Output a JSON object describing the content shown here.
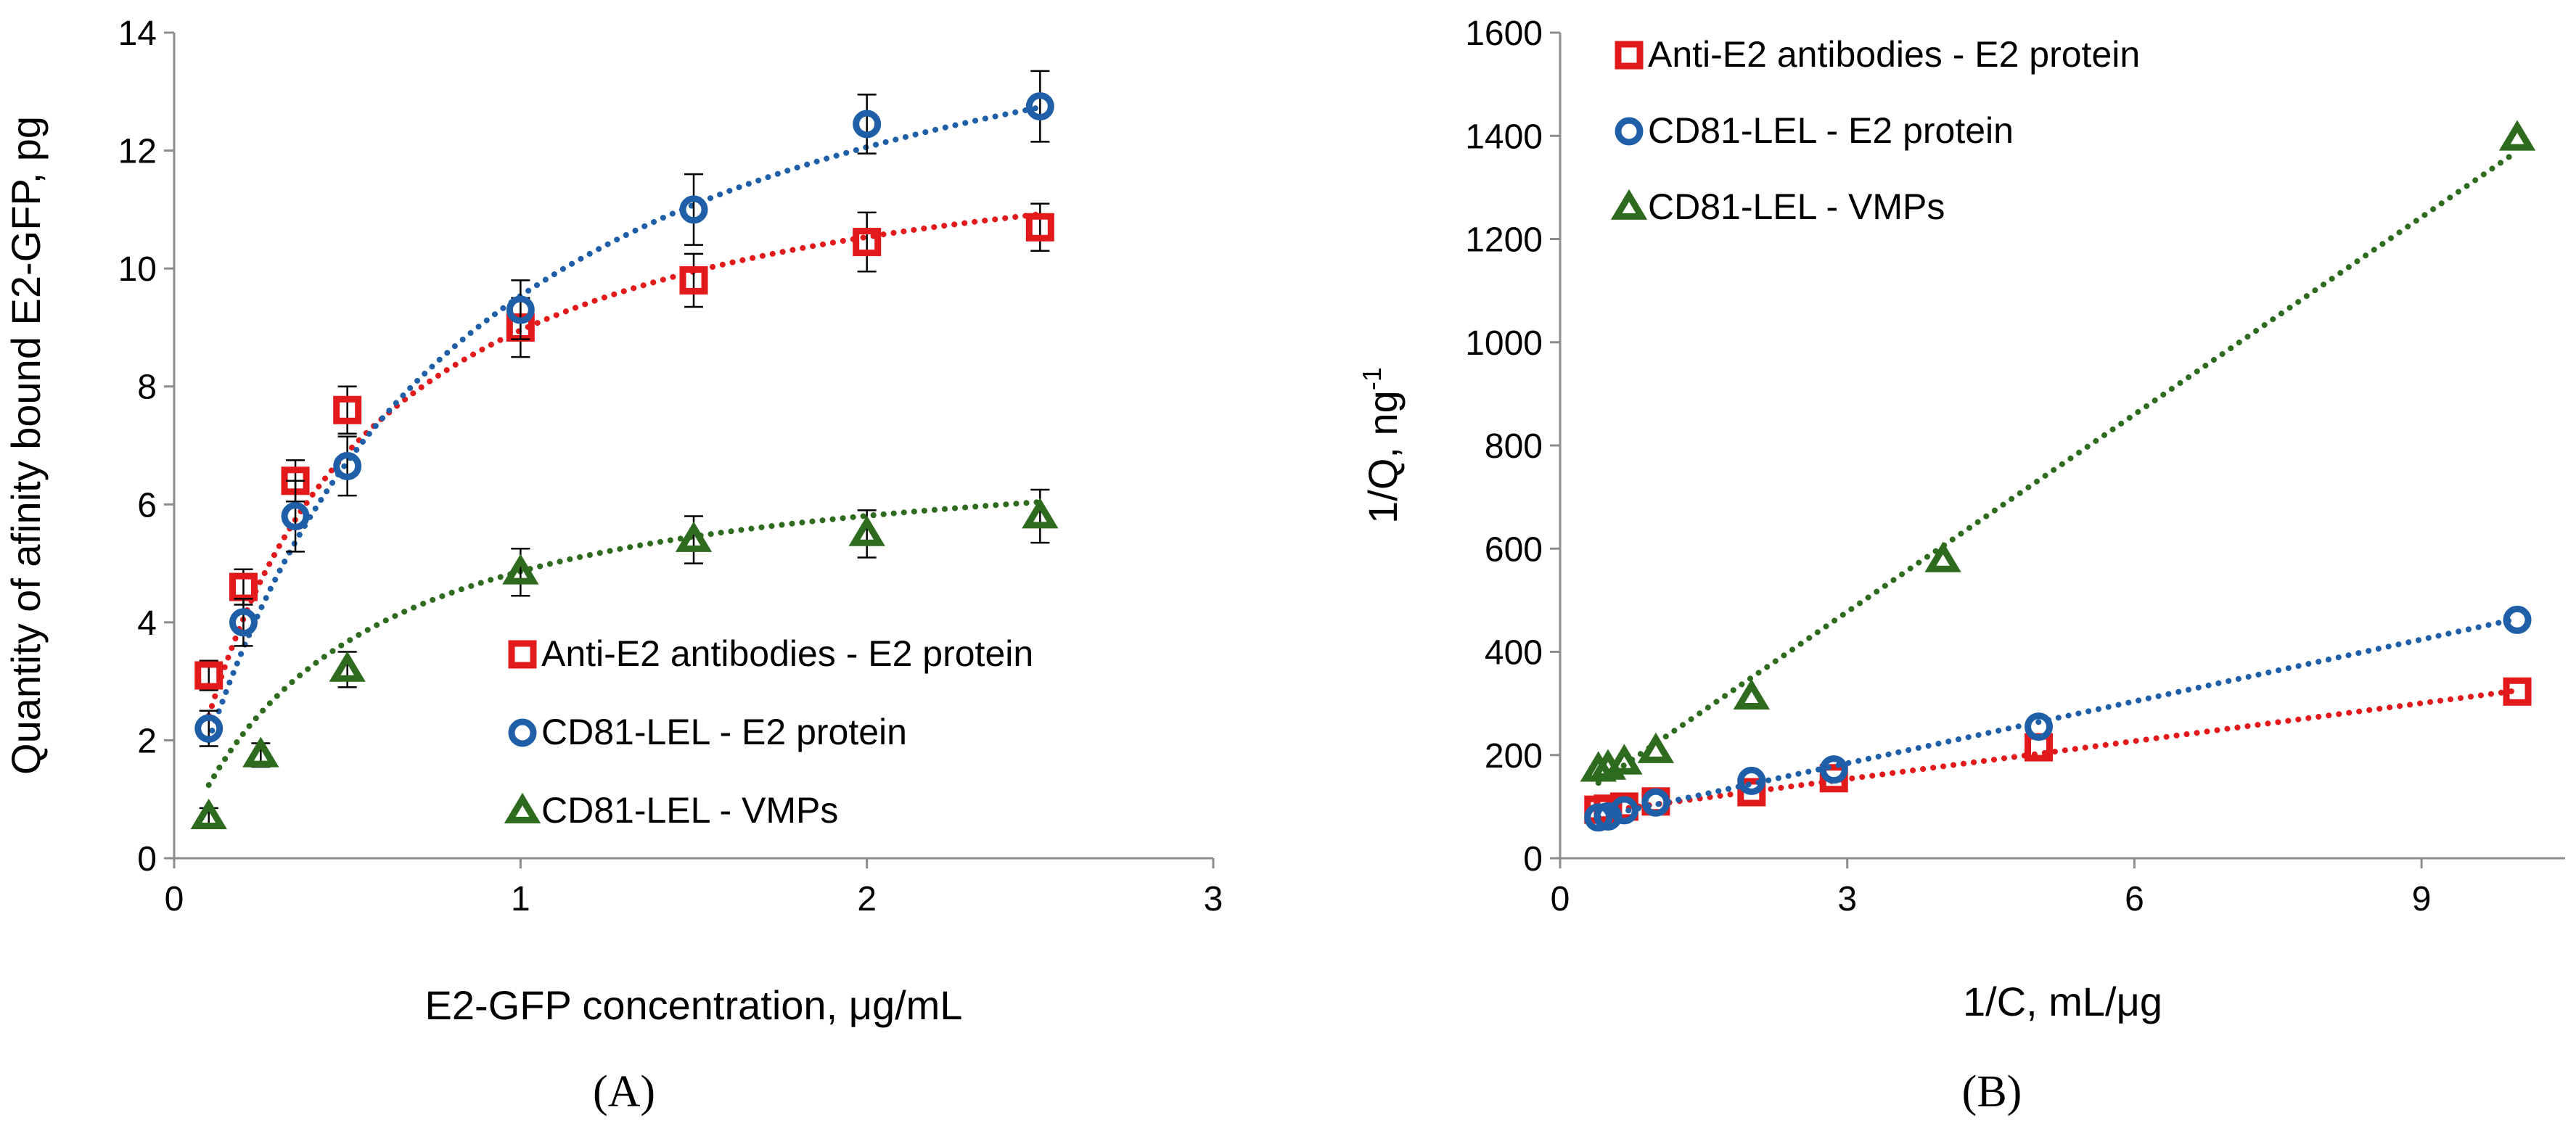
{
  "colors": {
    "red": "#e31a1c",
    "blue": "#1f5fa8",
    "green": "#2e6b1f",
    "axis": "#8c8c8c",
    "text": "#000000"
  },
  "chart_data": [
    {
      "type": "scatter",
      "panel_label": "(A)",
      "xlabel": "E2-GFP concentration, μg/mL",
      "ylabel": "Quantity of afinity bound E2-GFP, pg",
      "xlim": [
        0,
        3
      ],
      "ylim": [
        0,
        14
      ],
      "xticks": [
        0,
        1,
        2,
        3
      ],
      "yticks": [
        0,
        2,
        4,
        6,
        8,
        10,
        12,
        14
      ],
      "grid": false,
      "legend_position": "bottom-right",
      "series": [
        {
          "name": "Anti-E2 antibodies - E2 protein",
          "marker": "square",
          "color": "red",
          "x": [
            0.1,
            0.2,
            0.35,
            0.5,
            1.0,
            1.5,
            2.0,
            2.5
          ],
          "y": [
            3.1,
            4.6,
            6.4,
            7.6,
            9.0,
            9.8,
            10.45,
            10.7
          ],
          "err": [
            0.25,
            0.3,
            0.35,
            0.4,
            0.5,
            0.45,
            0.5,
            0.4
          ],
          "fit": {
            "model": "langmuir",
            "qmax": 12.8,
            "k": 0.43
          }
        },
        {
          "name": "CD81-LEL - E2 protein",
          "marker": "circle",
          "color": "blue",
          "x": [
            0.1,
            0.2,
            0.35,
            0.5,
            1.0,
            1.5,
            2.0,
            2.5
          ],
          "y": [
            2.2,
            4.0,
            5.8,
            6.65,
            9.3,
            11.0,
            12.45,
            12.75
          ],
          "err": [
            0.3,
            0.4,
            0.6,
            0.5,
            0.5,
            0.6,
            0.5,
            0.6
          ],
          "fit": {
            "model": "langmuir",
            "qmax": 16.4,
            "k": 0.72
          }
        },
        {
          "name": "CD81-LEL - VMPs",
          "marker": "triangle",
          "color": "green",
          "x": [
            0.1,
            0.25,
            0.5,
            1.0,
            1.5,
            2.0,
            2.5
          ],
          "y": [
            0.7,
            1.75,
            3.2,
            4.85,
            5.4,
            5.5,
            5.8
          ],
          "err": [
            0.15,
            0.2,
            0.3,
            0.4,
            0.4,
            0.4,
            0.45
          ],
          "fit": {
            "model": "langmuir",
            "qmax": 7.2,
            "k": 0.48
          }
        }
      ]
    },
    {
      "type": "scatter",
      "panel_label": "(B)",
      "xlabel": "1/C, mL/μg",
      "ylabel": "1/Q, ng",
      "ylabel_superscript": "-1",
      "xlim": [
        0,
        10.5
      ],
      "ylim": [
        0,
        1600
      ],
      "xticks": [
        0,
        3,
        6,
        9
      ],
      "yticks": [
        0,
        200,
        400,
        600,
        800,
        1000,
        1200,
        1400,
        1600
      ],
      "grid": false,
      "legend_position": "top-left",
      "series": [
        {
          "name": "Anti-E2 antibodies - E2 protein",
          "marker": "square",
          "color": "red",
          "x": [
            0.4,
            0.5,
            0.67,
            1.0,
            2.0,
            2.86,
            5.0,
            10.0
          ],
          "y": [
            94,
            96,
            100,
            110,
            128,
            155,
            215,
            323
          ],
          "fit": {
            "model": "linear",
            "slope": 24.5,
            "intercept": 80
          }
        },
        {
          "name": "CD81-LEL - E2 protein",
          "marker": "circle",
          "color": "blue",
          "x": [
            0.4,
            0.5,
            0.67,
            1.0,
            2.0,
            2.86,
            5.0,
            10.0
          ],
          "y": [
            79,
            81,
            93,
            108,
            150,
            172,
            255,
            462
          ],
          "fit": {
            "model": "linear",
            "slope": 40.0,
            "intercept": 64
          }
        },
        {
          "name": "CD81-LEL - VMPs",
          "marker": "triangle",
          "color": "green",
          "x": [
            0.4,
            0.5,
            0.67,
            1.0,
            2.0,
            4.0,
            10.0
          ],
          "y": [
            172,
            176,
            186,
            208,
            312,
            578,
            1395
          ],
          "fit": {
            "model": "linear",
            "slope": 127.5,
            "intercept": 95
          }
        }
      ]
    }
  ]
}
